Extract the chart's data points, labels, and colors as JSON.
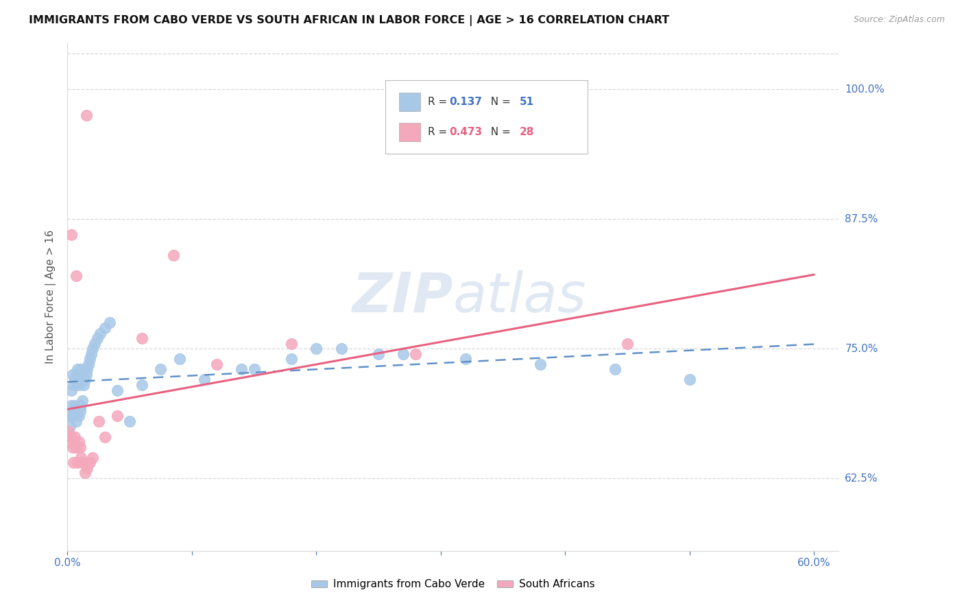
{
  "title": "IMMIGRANTS FROM CABO VERDE VS SOUTH AFRICAN IN LABOR FORCE | AGE > 16 CORRELATION CHART",
  "source": "Source: ZipAtlas.com",
  "ylabel": "In Labor Force | Age > 16",
  "xlim": [
    0.0,
    0.62
  ],
  "ylim": [
    0.555,
    1.045
  ],
  "ytick_vals": [
    0.625,
    0.75,
    0.875,
    1.0
  ],
  "ytick_labels": [
    "62.5%",
    "75.0%",
    "87.5%",
    "100.0%"
  ],
  "xtick_vals": [
    0.0,
    0.1,
    0.2,
    0.3,
    0.4,
    0.5,
    0.6
  ],
  "xtick_labels": [
    "0.0%",
    "",
    "",
    "",
    "",
    "",
    "60.0%"
  ],
  "cabo_verde_R": 0.137,
  "cabo_verde_N": 51,
  "south_africa_R": 0.473,
  "south_africa_N": 28,
  "cabo_verde_dot_color": "#a8c8e8",
  "south_africa_dot_color": "#f4a8bc",
  "cabo_verde_line_color": "#6090c8",
  "south_africa_line_color": "#e86080",
  "legend_cabo_color": "#4472c4",
  "legend_sa_color": "#e86080",
  "grid_color": "#d8d8d8",
  "watermark_color": "#c8d8ea",
  "bg_color": "#ffffff",
  "cabo_verde_pts_x": [
    0.001,
    0.002,
    0.003,
    0.003,
    0.004,
    0.004,
    0.005,
    0.005,
    0.006,
    0.006,
    0.007,
    0.007,
    0.008,
    0.008,
    0.009,
    0.009,
    0.01,
    0.01,
    0.011,
    0.011,
    0.012,
    0.013,
    0.014,
    0.015,
    0.016,
    0.017,
    0.018,
    0.019,
    0.02,
    0.022,
    0.024,
    0.026,
    0.03,
    0.034,
    0.04,
    0.05,
    0.06,
    0.075,
    0.09,
    0.11,
    0.14,
    0.18,
    0.22,
    0.27,
    0.32,
    0.38,
    0.44,
    0.5,
    0.2,
    0.15,
    0.25
  ],
  "cabo_verde_pts_y": [
    0.685,
    0.675,
    0.71,
    0.695,
    0.685,
    0.725,
    0.69,
    0.715,
    0.695,
    0.72,
    0.68,
    0.725,
    0.69,
    0.73,
    0.685,
    0.715,
    0.69,
    0.72,
    0.695,
    0.73,
    0.7,
    0.715,
    0.72,
    0.725,
    0.73,
    0.735,
    0.74,
    0.745,
    0.75,
    0.755,
    0.76,
    0.765,
    0.77,
    0.775,
    0.71,
    0.68,
    0.715,
    0.73,
    0.74,
    0.72,
    0.73,
    0.74,
    0.75,
    0.745,
    0.74,
    0.735,
    0.73,
    0.72,
    0.75,
    0.73,
    0.745
  ],
  "south_africa_pts_x": [
    0.001,
    0.002,
    0.003,
    0.004,
    0.005,
    0.006,
    0.007,
    0.008,
    0.009,
    0.01,
    0.011,
    0.012,
    0.014,
    0.016,
    0.018,
    0.02,
    0.025,
    0.03,
    0.04,
    0.06,
    0.085,
    0.12,
    0.18,
    0.28,
    0.45,
    0.003,
    0.007,
    0.015
  ],
  "south_africa_pts_y": [
    0.67,
    0.66,
    0.665,
    0.655,
    0.64,
    0.665,
    0.655,
    0.64,
    0.66,
    0.655,
    0.645,
    0.64,
    0.63,
    0.635,
    0.64,
    0.645,
    0.68,
    0.665,
    0.685,
    0.76,
    0.84,
    0.735,
    0.755,
    0.745,
    0.755,
    0.86,
    0.82,
    0.975
  ]
}
